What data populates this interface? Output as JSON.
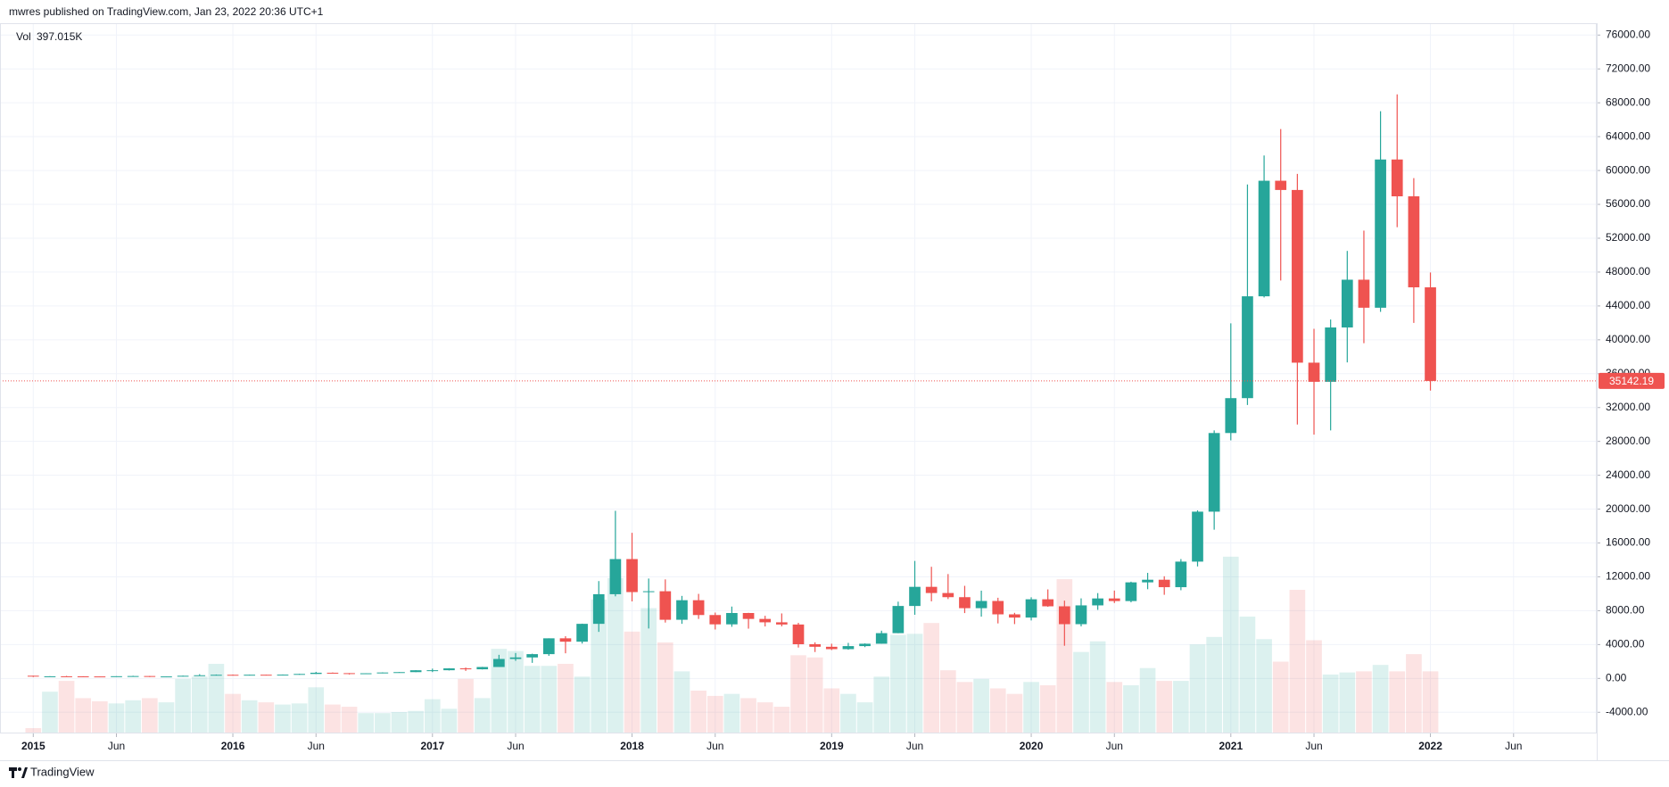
{
  "header": "mwres published on TradingView.com, Jan 23, 2022 20:36 UTC+1",
  "footer": "TradingView",
  "chart_data": {
    "type": "candlestick",
    "x": [
      "2015-01",
      "2015-02",
      "2015-03",
      "2015-04",
      "2015-05",
      "2015-06",
      "2015-07",
      "2015-08",
      "2015-09",
      "2015-10",
      "2015-11",
      "2015-12",
      "2016-01",
      "2016-02",
      "2016-03",
      "2016-04",
      "2016-05",
      "2016-06",
      "2016-07",
      "2016-08",
      "2016-09",
      "2016-10",
      "2016-11",
      "2016-12",
      "2017-01",
      "2017-02",
      "2017-03",
      "2017-04",
      "2017-05",
      "2017-06",
      "2017-07",
      "2017-08",
      "2017-09",
      "2017-10",
      "2017-11",
      "2017-12",
      "2018-01",
      "2018-02",
      "2018-03",
      "2018-04",
      "2018-05",
      "2018-06",
      "2018-07",
      "2018-08",
      "2018-09",
      "2018-10",
      "2018-11",
      "2018-12",
      "2019-01",
      "2019-02",
      "2019-03",
      "2019-04",
      "2019-05",
      "2019-06",
      "2019-07",
      "2019-08",
      "2019-09",
      "2019-10",
      "2019-11",
      "2019-12",
      "2020-01",
      "2020-02",
      "2020-03",
      "2020-04",
      "2020-05",
      "2020-06",
      "2020-07",
      "2020-08",
      "2020-09",
      "2020-10",
      "2020-11",
      "2020-12",
      "2021-01",
      "2021-02",
      "2021-03",
      "2021-04",
      "2021-05",
      "2021-06",
      "2021-07",
      "2021-08",
      "2021-09",
      "2021-10",
      "2021-11",
      "2021-12",
      "2022-01"
    ],
    "open": [
      320,
      217,
      254,
      244,
      236,
      230,
      263,
      284,
      230,
      236,
      314,
      377,
      430,
      368,
      437,
      416,
      448,
      531,
      673,
      624,
      574,
      609,
      701,
      745,
      964,
      970,
      1190,
      1080,
      1350,
      2300,
      2480,
      2870,
      4740,
      4340,
      6450,
      9950,
      14100,
      10200,
      10300,
      6930,
      9240,
      7490,
      6390,
      7730,
      7030,
      6630,
      6370,
      4040,
      3740,
      3460,
      3820,
      4100,
      5350,
      8560,
      10820,
      10090,
      9600,
      8300,
      9150,
      7570,
      7190,
      9350,
      8520,
      6410,
      8630,
      9450,
      9140,
      11350,
      11660,
      10780,
      13800,
      19700,
      28990,
      33110,
      45140,
      58790,
      57700,
      37300,
      35040,
      41460,
      47100,
      43790,
      61300,
      56950,
      46200
    ],
    "high": [
      320,
      265,
      300,
      261,
      248,
      267,
      317,
      285,
      243,
      334,
      502,
      465,
      462,
      448,
      439,
      467,
      548,
      778,
      704,
      626,
      615,
      720,
      755,
      975,
      1160,
      1210,
      1290,
      1370,
      2790,
      3000,
      2920,
      4740,
      4990,
      6470,
      11500,
      19800,
      17200,
      11800,
      11700,
      9750,
      9990,
      7780,
      8490,
      7750,
      7400,
      7680,
      6570,
      4260,
      4100,
      4200,
      4140,
      5640,
      9070,
      13880,
      13190,
      12330,
      10940,
      10370,
      9530,
      7750,
      9590,
      10520,
      9190,
      9460,
      10080,
      10380,
      11430,
      12470,
      12070,
      14100,
      19860,
      29300,
      41950,
      58350,
      61780,
      64900,
      59600,
      41300,
      42400,
      50500,
      52900,
      67000,
      69000,
      59100,
      47950
    ],
    "low": [
      170,
      212,
      237,
      214,
      229,
      221,
      253,
      162,
      225,
      236,
      303,
      349,
      350,
      366,
      394,
      414,
      440,
      529,
      608,
      466,
      568,
      604,
      684,
      744,
      750,
      940,
      890,
      1060,
      1350,
      2080,
      1840,
      2670,
      2970,
      4120,
      5500,
      9700,
      9100,
      5900,
      6600,
      6450,
      7030,
      5780,
      6100,
      5880,
      6140,
      6150,
      3650,
      3120,
      3350,
      3390,
      3700,
      4090,
      5340,
      7520,
      9110,
      9380,
      7720,
      7300,
      6500,
      6420,
      6850,
      8460,
      3860,
      6150,
      8100,
      8910,
      8990,
      10540,
      9880,
      10420,
      13230,
      17570,
      28130,
      32300,
      45000,
      47000,
      30000,
      28800,
      29300,
      37330,
      39600,
      43300,
      53300,
      42000,
      34000
    ],
    "close": [
      217,
      254,
      244,
      236,
      230,
      263,
      284,
      230,
      236,
      314,
      377,
      430,
      368,
      437,
      416,
      448,
      531,
      673,
      624,
      574,
      609,
      701,
      745,
      964,
      970,
      1190,
      1080,
      1350,
      2300,
      2480,
      2870,
      4740,
      4340,
      6450,
      9950,
      14100,
      10200,
      10300,
      6930,
      9240,
      7490,
      6390,
      7730,
      7030,
      6630,
      6370,
      4040,
      3740,
      3460,
      3820,
      4100,
      5350,
      8560,
      10820,
      10090,
      9600,
      8300,
      9150,
      7570,
      7190,
      9350,
      8520,
      6410,
      8630,
      9450,
      9140,
      11350,
      11660,
      10780,
      13800,
      19700,
      28990,
      33110,
      45140,
      58790,
      57700,
      37300,
      35040,
      41460,
      47100,
      43790,
      61300,
      56950,
      46200,
      35142.19
    ],
    "volume": {
      "name": "Vol",
      "values": [
        34000,
        267000,
        336000,
        226000,
        206000,
        192000,
        212000,
        226000,
        199000,
        349000,
        363000,
        445000,
        253000,
        212000,
        199000,
        185000,
        192000,
        295000,
        185000,
        171000,
        130000,
        130000,
        137000,
        144000,
        219000,
        158000,
        349000,
        226000,
        541000,
        527000,
        432000,
        432000,
        445000,
        363000,
        856000,
        993000,
        651000,
        801000,
        582000,
        397000,
        274000,
        240000,
        253000,
        226000,
        199000,
        171000,
        500000,
        486000,
        288000,
        253000,
        199000,
        363000,
        630000,
        637000,
        706000,
        404000,
        329000,
        349000,
        288000,
        253000,
        329000,
        308000,
        986000,
        521000,
        589000,
        329000,
        308000,
        418000,
        336000,
        336000,
        569000,
        617000,
        1130000,
        747000,
        603000,
        459000,
        918000,
        596000,
        377000,
        390000,
        397000,
        438000,
        397000,
        507000,
        397015
      ],
      "value_labels": [
        null,
        null,
        null,
        null,
        null,
        null,
        null,
        null,
        null,
        null,
        null,
        null,
        null,
        null,
        null,
        null,
        null,
        null,
        null,
        null,
        null,
        null,
        null,
        null,
        null,
        null,
        null,
        null,
        null,
        null,
        null,
        null,
        null,
        null,
        null,
        null,
        null,
        null,
        null,
        null,
        null,
        null,
        null,
        null,
        null,
        null,
        null,
        null,
        null,
        null,
        null,
        null,
        null,
        null,
        null,
        null,
        null,
        null,
        null,
        null,
        null,
        null,
        null,
        null,
        null,
        null,
        null,
        null,
        null,
        null,
        null,
        null,
        null,
        null,
        null,
        null,
        null,
        null,
        null,
        null,
        null,
        null,
        null,
        null,
        "397.015K"
      ],
      "vlim": [
        0,
        4540000
      ]
    },
    "up_color": "#26a69a",
    "down_color": "#ef5350",
    "xlim": [
      "2014-11",
      "2022-11"
    ],
    "xticks": [
      {
        "value": "2015-01",
        "label": "2015"
      },
      {
        "value": "2015-06",
        "label": "Jun"
      },
      {
        "value": "2016-01",
        "label": "2016"
      },
      {
        "value": "2016-06",
        "label": "Jun"
      },
      {
        "value": "2017-01",
        "label": "2017"
      },
      {
        "value": "2017-06",
        "label": "Jun"
      },
      {
        "value": "2018-01",
        "label": "2018"
      },
      {
        "value": "2018-06",
        "label": "Jun"
      },
      {
        "value": "2019-01",
        "label": "2019"
      },
      {
        "value": "2019-06",
        "label": "Jun"
      },
      {
        "value": "2020-01",
        "label": "2020"
      },
      {
        "value": "2020-06",
        "label": "Jun"
      },
      {
        "value": "2021-01",
        "label": "2021"
      },
      {
        "value": "2021-06",
        "label": "Jun"
      },
      {
        "value": "2022-01",
        "label": "2022"
      },
      {
        "value": "2022-06",
        "label": "Jun"
      }
    ],
    "ylim": [
      -6500,
      77400
    ],
    "yticks": [
      {
        "value": -4000,
        "label": "-4000.00"
      },
      {
        "value": 0,
        "label": "0.00"
      },
      {
        "value": 4000,
        "label": "4000.00"
      },
      {
        "value": 8000,
        "label": "8000.00"
      },
      {
        "value": 12000,
        "label": "12000.00"
      },
      {
        "value": 16000,
        "label": "16000.00"
      },
      {
        "value": 20000,
        "label": "20000.00"
      },
      {
        "value": 24000,
        "label": "24000.00"
      },
      {
        "value": 28000,
        "label": "28000.00"
      },
      {
        "value": 32000,
        "label": "32000.00"
      },
      {
        "value": 36000,
        "label": "36000.00"
      },
      {
        "value": 40000,
        "label": "40000.00"
      },
      {
        "value": 44000,
        "label": "44000.00"
      },
      {
        "value": 48000,
        "label": "48000.00"
      },
      {
        "value": 52000,
        "label": "52000.00"
      },
      {
        "value": 56000,
        "label": "56000.00"
      },
      {
        "value": 60000,
        "label": "60000.00"
      },
      {
        "value": 64000,
        "label": "64000.00"
      },
      {
        "value": 68000,
        "label": "68000.00"
      },
      {
        "value": 72000,
        "label": "72000.00"
      },
      {
        "value": 76000,
        "label": "76000.00"
      }
    ],
    "grid": true
  }
}
